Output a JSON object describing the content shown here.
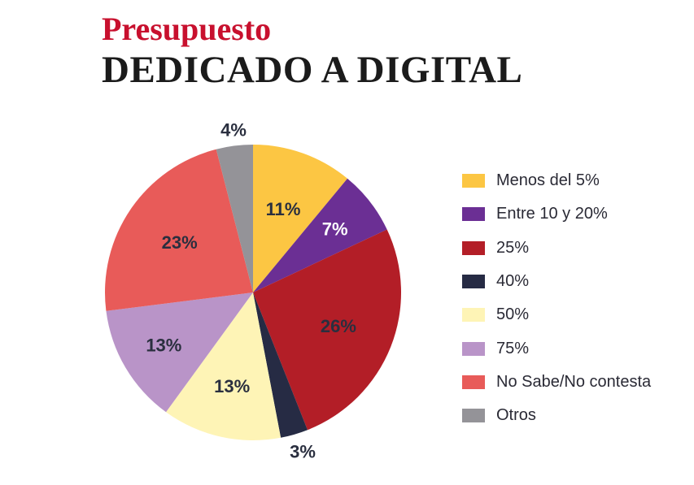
{
  "header": {
    "title_line1": "Presupuesto",
    "title_line2": "DEDICADO A DIGITAL"
  },
  "chart_data": {
    "type": "pie",
    "title": "Presupuesto DEDICADO A DIGITAL",
    "slices": [
      {
        "name": "Menos del 5%",
        "value": 11,
        "label": "11%",
        "color": "#fcc643"
      },
      {
        "name": "Entre 10 y 20%",
        "value": 7,
        "label": "7%",
        "color": "#6b2f94"
      },
      {
        "name": "25%",
        "value": 26,
        "label": "26%",
        "color": "#b31e27"
      },
      {
        "name": "40%",
        "value": 3,
        "label": "3%",
        "color": "#262b44"
      },
      {
        "name": "50%",
        "value": 13,
        "label": "13%",
        "color": "#fef4b6"
      },
      {
        "name": "75%",
        "value": 13,
        "label": "13%",
        "color": "#b994c8"
      },
      {
        "name": "No Sabe/No contesta",
        "value": 23,
        "label": "23%",
        "color": "#e85b59"
      },
      {
        "name": "Otros",
        "value": 4,
        "label": "4%",
        "color": "#949398"
      }
    ],
    "legend_position": "right"
  }
}
